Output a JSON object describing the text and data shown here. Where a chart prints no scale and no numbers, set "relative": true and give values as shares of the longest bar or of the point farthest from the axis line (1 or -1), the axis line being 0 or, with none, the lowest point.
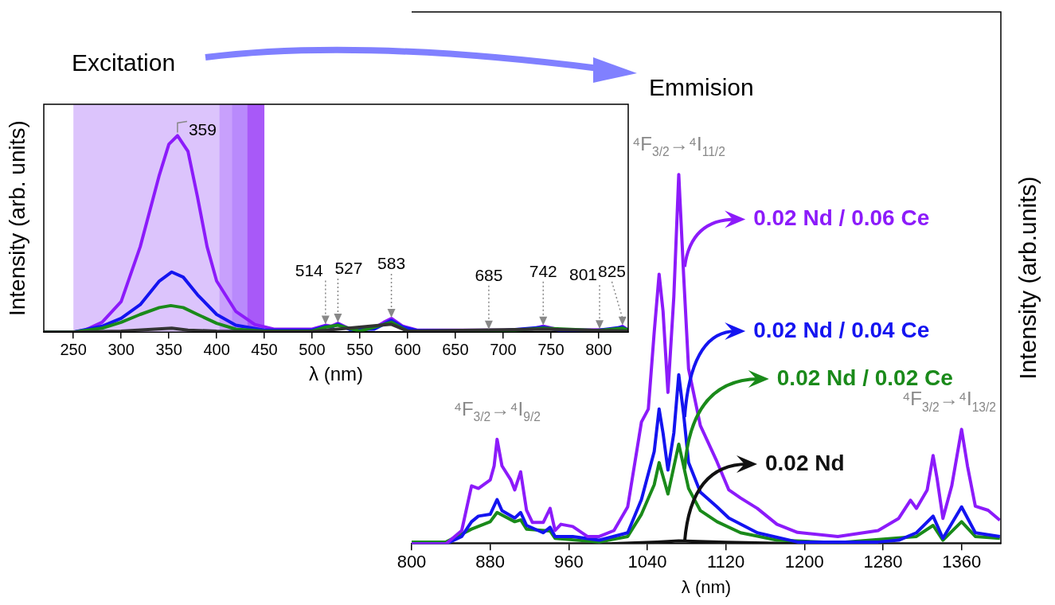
{
  "chart_data": [
    {
      "type": "line",
      "title": "Excitation",
      "xlabel": "λ (nm)",
      "ylabel": "Intensity (arb. units)",
      "relative": true,
      "xlim": [
        219,
        831
      ],
      "xticks": [
        250,
        300,
        350,
        400,
        450,
        500,
        550,
        600,
        650,
        700,
        750,
        800
      ],
      "grid": false,
      "legend": false,
      "marker": "none",
      "bands": [
        {
          "axis": "x",
          "from": 250,
          "to": 450,
          "color": "#dcc4fc"
        },
        {
          "axis": "x",
          "from": 403,
          "to": 416,
          "color": "#c8a0fc"
        },
        {
          "axis": "x",
          "from": 416,
          "to": 432,
          "color": "#b98afc"
        },
        {
          "axis": "x",
          "from": 432,
          "to": 450,
          "color": "#a859f8"
        }
      ],
      "annotations": [
        {
          "text": "359",
          "x": 359,
          "y": 1
        },
        {
          "text": "514",
          "x": 514,
          "y": 0.035
        },
        {
          "text": "527",
          "x": 527,
          "y": 0.045
        },
        {
          "text": "583",
          "x": 583,
          "y": 0.07
        },
        {
          "text": "685",
          "x": 685,
          "y": 0.01
        },
        {
          "text": "742",
          "x": 742,
          "y": 0.03
        },
        {
          "text": "801",
          "x": 801,
          "y": 0.012
        },
        {
          "text": "825",
          "x": 825,
          "y": 0.03
        }
      ],
      "series": [
        {
          "color": "#333333",
          "x": [
            219,
            250,
            300,
            353,
            370,
            400,
            450,
            500,
            583,
            600,
            742,
            831
          ],
          "values": [
            0,
            0,
            0.005,
            0.02,
            0.01,
            0.005,
            0.003,
            0.003,
            0.04,
            0.005,
            0.015,
            0.005
          ]
        },
        {
          "color": "#1a8a1a",
          "x": [
            219,
            250,
            280,
            300,
            320,
            340,
            352,
            365,
            380,
            400,
            420,
            450,
            500,
            514,
            527,
            550,
            583,
            600,
            700,
            742,
            800,
            825,
            831
          ],
          "values": [
            0,
            0,
            0.02,
            0.05,
            0.09,
            0.125,
            0.135,
            0.125,
            0.09,
            0.045,
            0.015,
            0.005,
            0.005,
            0.025,
            0.035,
            0.005,
            0.05,
            0.005,
            0.005,
            0.02,
            0.008,
            0.02,
            0.01
          ]
        },
        {
          "color": "#1414f0",
          "x": [
            219,
            250,
            280,
            300,
            320,
            340,
            353,
            365,
            380,
            400,
            420,
            450,
            500,
            514,
            520,
            527,
            540,
            565,
            583,
            595,
            610,
            700,
            742,
            760,
            800,
            825,
            831
          ],
          "values": [
            0,
            0,
            0.03,
            0.07,
            0.14,
            0.26,
            0.306,
            0.28,
            0.19,
            0.09,
            0.035,
            0.01,
            0.01,
            0.03,
            0.025,
            0.04,
            0.012,
            0.015,
            0.06,
            0.025,
            0.008,
            0.008,
            0.025,
            0.008,
            0.01,
            0.025,
            0.01
          ]
        },
        {
          "color": "#8c1bfa",
          "x": [
            219,
            250,
            262,
            280,
            300,
            320,
            340,
            350,
            359,
            370,
            380,
            390,
            400,
            420,
            440,
            460,
            500,
            514,
            520,
            527,
            540,
            565,
            575,
            583,
            595,
            610,
            700,
            730,
            742,
            760,
            800,
            815,
            825,
            831
          ],
          "values": [
            0,
            0,
            0.01,
            0.05,
            0.155,
            0.435,
            0.8,
            0.957,
            1,
            0.92,
            0.687,
            0.435,
            0.26,
            0.106,
            0.039,
            0.015,
            0.015,
            0.035,
            0.03,
            0.045,
            0.015,
            0.02,
            0.05,
            0.07,
            0.03,
            0.01,
            0.01,
            0.015,
            0.03,
            0.01,
            0.012,
            0.01,
            0.03,
            0.01
          ]
        }
      ]
    },
    {
      "type": "line",
      "title": "Emmision",
      "xlabel": "λ (nm)",
      "ylabel": "Intensity (arb.units)",
      "relative": true,
      "xlim": [
        800,
        1400
      ],
      "xticks": [
        800,
        880,
        960,
        1040,
        1120,
        1200,
        1280,
        1360
      ],
      "grid": false,
      "legend": "right",
      "marker": "none",
      "annotations": [
        {
          "text": "⁴F$_{3/2}$→⁴I$_{9/2}$",
          "x": 887,
          "y": 0.283
        },
        {
          "text": "⁴F$_{3/2}$→⁴I$_{11/2}$",
          "x": 1072,
          "y": 1
        },
        {
          "text": "⁴F$_{3/2}$→⁴I$_{13/2}$",
          "x": 1360,
          "y": 0.31
        }
      ],
      "series": [
        {
          "name": "0.02 Nd / 0.06 Ce",
          "color": "#8c1bfa",
          "x": [
            800,
            835,
            851,
            861,
            868,
            880,
            884,
            887,
            892,
            901,
            905,
            911,
            917,
            923,
            934,
            941,
            946,
            952,
            964,
            979,
            991,
            1006,
            1020,
            1034,
            1041,
            1047,
            1052,
            1056,
            1061,
            1067,
            1072,
            1077,
            1082,
            1094,
            1111,
            1123,
            1135,
            1152,
            1172,
            1193,
            1234,
            1275,
            1296,
            1308,
            1314,
            1325,
            1331,
            1335,
            1341,
            1350,
            1360,
            1366,
            1374,
            1387,
            1399
          ],
          "values": [
            0,
            0,
            0.036,
            0.157,
            0.15,
            0.173,
            0.211,
            0.283,
            0.211,
            0.173,
            0.146,
            0.195,
            0.091,
            0.058,
            0.058,
            0.096,
            0.036,
            0.053,
            0.047,
            0.02,
            0.02,
            0.036,
            0.1,
            0.33,
            0.365,
            0.573,
            0.73,
            0.63,
            0.41,
            0.67,
            1,
            0.726,
            0.474,
            0.32,
            0.222,
            0.146,
            0.124,
            0.096,
            0.053,
            0.031,
            0.02,
            0.036,
            0.069,
            0.118,
            0.096,
            0.146,
            0.239,
            0.178,
            0.069,
            0.157,
            0.31,
            0.211,
            0.102,
            0.091,
            0.064
          ]
        },
        {
          "name": "0.02 Nd / 0.04 Ce",
          "color": "#1414f0",
          "x": [
            800,
            835,
            851,
            861,
            868,
            880,
            887,
            892,
            905,
            911,
            917,
            934,
            941,
            946,
            964,
            991,
            1020,
            1034,
            1047,
            1052,
            1056,
            1061,
            1067,
            1072,
            1077,
            1082,
            1094,
            1111,
            1123,
            1152,
            1193,
            1275,
            1296,
            1314,
            1331,
            1341,
            1360,
            1374,
            1399
          ],
          "values": [
            0,
            0,
            0.02,
            0.06,
            0.075,
            0.08,
            0.12,
            0.09,
            0.07,
            0.085,
            0.05,
            0.03,
            0.045,
            0.02,
            0.02,
            0.01,
            0.03,
            0.12,
            0.25,
            0.365,
            0.3,
            0.2,
            0.3,
            0.458,
            0.35,
            0.22,
            0.14,
            0.1,
            0.07,
            0.03,
            0.005,
            0.005,
            0.01,
            0.03,
            0.075,
            0.015,
            0.1,
            0.03,
            0.02
          ]
        },
        {
          "name": "0.02 Nd / 0.02 Ce",
          "color": "#1a8a1a",
          "x": [
            800,
            835,
            861,
            880,
            887,
            905,
            911,
            917,
            941,
            946,
            991,
            1020,
            1034,
            1047,
            1052,
            1061,
            1072,
            1082,
            1094,
            1111,
            1135,
            1172,
            1234,
            1314,
            1331,
            1341,
            1360,
            1374,
            1399
          ],
          "values": [
            0.005,
            0.005,
            0.04,
            0.06,
            0.085,
            0.06,
            0.065,
            0.04,
            0.035,
            0.015,
            0.005,
            0.02,
            0.08,
            0.16,
            0.22,
            0.135,
            0.27,
            0.15,
            0.09,
            0.06,
            0.03,
            0.01,
            0.003,
            0.02,
            0.05,
            0.01,
            0.06,
            0.02,
            0.015
          ]
        },
        {
          "name": "0.02 Nd",
          "color": "#111111",
          "x": [
            800,
            1000,
            1050,
            1072,
            1120,
            1200,
            1400
          ],
          "values": [
            0,
            0,
            0.005,
            0.008,
            0.004,
            0,
            0
          ]
        }
      ]
    }
  ]
}
